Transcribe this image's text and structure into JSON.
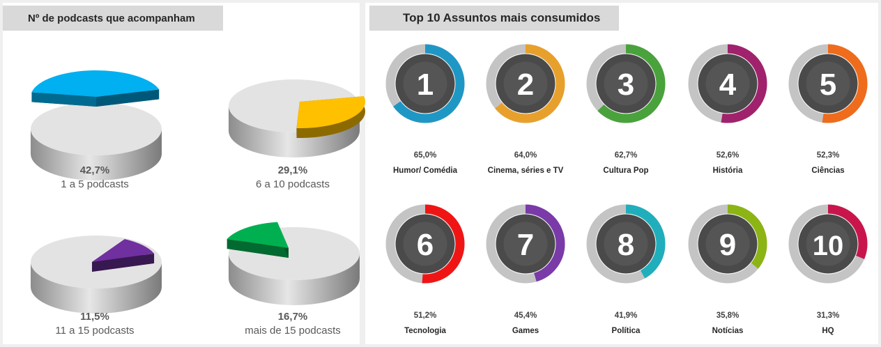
{
  "left": {
    "title": "Nº de podcasts que acompanham",
    "pies": [
      {
        "percent": "42,7%",
        "label": "1 a 5 podcasts",
        "value": 42.7,
        "color": "#00b0f0"
      },
      {
        "percent": "29,1%",
        "label": "6 a 10 podcasts",
        "value": 29.1,
        "color": "#ffc000"
      },
      {
        "percent": "11,5%",
        "label": "11 a 15 podcasts",
        "value": 11.5,
        "color": "#7030a0"
      },
      {
        "percent": "16,7%",
        "label": "mais de 15 podcasts",
        "value": 16.7,
        "color": "#00b050"
      }
    ]
  },
  "right": {
    "title": "Top 10  Assuntos mais consumidos",
    "topics": [
      {
        "rank": "1",
        "percent": "65,0%",
        "name": "Humor/ Comédia",
        "value": 65.0,
        "color": "#1f97c5"
      },
      {
        "rank": "2",
        "percent": "64,0%",
        "name": "Cinema, séries e TV",
        "value": 64.0,
        "color": "#e8a02c"
      },
      {
        "rank": "3",
        "percent": "62,7%",
        "name": "Cultura Pop",
        "value": 62.7,
        "color": "#4aa23c"
      },
      {
        "rank": "4",
        "percent": "52,6%",
        "name": "História",
        "value": 52.6,
        "color": "#a0226c"
      },
      {
        "rank": "5",
        "percent": "52,3%",
        "name": "Ciências",
        "value": 52.3,
        "color": "#ee6c1c"
      },
      {
        "rank": "6",
        "percent": "51,2%",
        "name": "Tecnologia",
        "value": 51.2,
        "color": "#f01515"
      },
      {
        "rank": "7",
        "percent": "45,4%",
        "name": "Games",
        "value": 45.4,
        "color": "#7a3aa8"
      },
      {
        "rank": "8",
        "percent": "41,9%",
        "name": "Política",
        "value": 41.9,
        "color": "#20aebc"
      },
      {
        "rank": "9",
        "percent": "35,8%",
        "name": "Notícias",
        "value": 35.8,
        "color": "#8cb414"
      },
      {
        "rank": "10",
        "percent": "31,3%",
        "name": "HQ",
        "value": 31.3,
        "color": "#c8164c"
      }
    ]
  },
  "chart_data": [
    {
      "type": "pie",
      "title": "Nº de podcasts que acompanham",
      "categories": [
        "1 a 5 podcasts",
        "6 a 10 podcasts",
        "11 a 15 podcasts",
        "mais de 15 podcasts"
      ],
      "values": [
        42.7,
        29.1,
        11.5,
        16.7
      ]
    },
    {
      "type": "bar",
      "title": "Top 10  Assuntos mais consumidos",
      "categories": [
        "Humor/ Comédia",
        "Cinema, séries e TV",
        "Cultura Pop",
        "História",
        "Ciências",
        "Tecnologia",
        "Games",
        "Política",
        "Notícias",
        "HQ"
      ],
      "values": [
        65.0,
        64.0,
        62.7,
        52.6,
        52.3,
        51.2,
        45.4,
        41.9,
        35.8,
        31.3
      ]
    }
  ]
}
